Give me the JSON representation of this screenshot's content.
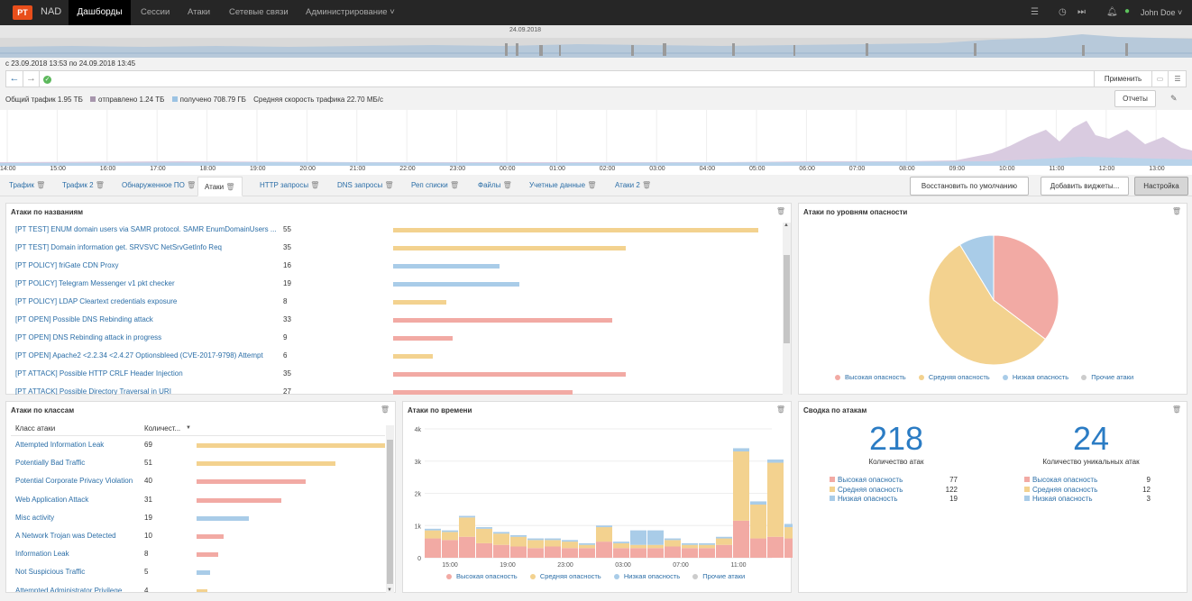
{
  "header": {
    "logo": "PT",
    "brand": "NAD",
    "nav": [
      "Дашборды",
      "Сессии",
      "Атаки",
      "Сетевые связи",
      "Администрирование ˅"
    ],
    "user": "John Doe ˅"
  },
  "overview": {
    "date_label": "24.09.2018"
  },
  "period": "с 23.09.2018 13:53 по 24.09.2018 13:45",
  "filter": {
    "apply_label": "Применить"
  },
  "traffic": {
    "total": "Общий трафик 1.95 ТБ",
    "sent": "отправлено 1.24 ТБ",
    "received": "получено 708.79 ГБ",
    "avg_speed": "Средняя скорость трафика 22.70 МБ/с",
    "reports_label": "Отчеты",
    "colors": {
      "sent": "#a796ad",
      "received": "#9cc3e3"
    }
  },
  "timeline_ticks": [
    "14:00",
    "15:00",
    "16:00",
    "17:00",
    "18:00",
    "19:00",
    "20:00",
    "21:00",
    "22:00",
    "23:00",
    "00:00",
    "01:00",
    "02:00",
    "03:00",
    "04:00",
    "05:00",
    "06:00",
    "07:00",
    "08:00",
    "09:00",
    "10:00",
    "11:00",
    "12:00",
    "13:00"
  ],
  "tabs": [
    "Трафик",
    "Трафик 2",
    "Обнаруженное ПО",
    "Атаки",
    "HTTP запросы",
    "DNS запросы",
    "Реп списки",
    "Файлы",
    "Учетные данные",
    "Атаки 2"
  ],
  "active_tab": "Атаки",
  "toolbar": {
    "restore_label": "Восстановить по умолчанию",
    "add_widgets_label": "Добавить виджеты...",
    "settings_label": "Настройка"
  },
  "colors": {
    "high": "#f2aaa4",
    "medium": "#f3d28f",
    "low": "#a9cce8",
    "other": "#cccccc",
    "link": "#2b6ea7"
  },
  "attacks_by_name": {
    "title": "Атаки по названиям",
    "max": 55,
    "rows": [
      {
        "name": "[PT TEST] ENUM domain users via SAMR protocol. SAMR EnumDomainUsers ...",
        "count": 55,
        "level": "medium"
      },
      {
        "name": "[PT TEST] Domain information get. SRVSVC NetSrvGetInfo Req",
        "count": 35,
        "level": "medium"
      },
      {
        "name": "[PT POLICY] friGate CDN Proxy",
        "count": 16,
        "level": "low"
      },
      {
        "name": "[PT POLICY] Telegram Messenger v1 pkt checker",
        "count": 19,
        "level": "low"
      },
      {
        "name": "[PT POLICY] LDAP Cleartext credentials exposure",
        "count": 8,
        "level": "medium"
      },
      {
        "name": "[PT OPEN] Possible DNS Rebinding attack",
        "count": 33,
        "level": "high"
      },
      {
        "name": "[PT OPEN] DNS Rebinding attack in progress",
        "count": 9,
        "level": "high"
      },
      {
        "name": "[PT OPEN] Apache2 <2.2.34 <2.4.27 Optionsbleed (CVE-2017-9798) Attempt",
        "count": 6,
        "level": "medium"
      },
      {
        "name": "[PT ATTACK] Possible HTTP CRLF Header Injection",
        "count": 35,
        "level": "high"
      },
      {
        "name": "[PT ATTACK] Possible Directory Traversal in URI",
        "count": 27,
        "level": "high"
      }
    ]
  },
  "attacks_by_severity": {
    "title": "Атаки по уровням опасности",
    "legend": [
      "Высокая опасность",
      "Средняя опасность",
      "Низкая опасность",
      "Прочие атаки"
    ],
    "chart_data": {
      "type": "pie",
      "labels": [
        "Высокая опасность",
        "Средняя опасность",
        "Низкая опасность"
      ],
      "values": [
        77,
        122,
        19
      ]
    }
  },
  "attacks_by_class": {
    "title": "Атаки по классам",
    "col_class": "Класс атаки",
    "col_count": "Количест...",
    "max": 69,
    "rows": [
      {
        "name": "Attempted Information Leak",
        "count": 69,
        "level": "medium"
      },
      {
        "name": "Potentially Bad Traffic",
        "count": 51,
        "level": "medium"
      },
      {
        "name": "Potential Corporate Privacy Violation",
        "count": 40,
        "level": "high"
      },
      {
        "name": "Web Application Attack",
        "count": 31,
        "level": "high"
      },
      {
        "name": "Misc activity",
        "count": 19,
        "level": "low"
      },
      {
        "name": "A Network Trojan was Detected",
        "count": 10,
        "level": "high"
      },
      {
        "name": "Information Leak",
        "count": 8,
        "level": "high"
      },
      {
        "name": "Not Suspicious Traffic",
        "count": 5,
        "level": "low"
      },
      {
        "name": "Attempted Administrator Privilege ...",
        "count": 4,
        "level": "medium"
      }
    ]
  },
  "attacks_by_time": {
    "title": "Атаки по времени",
    "legend": [
      "Высокая опасность",
      "Средняя опасность",
      "Низкая опасность",
      "Прочие атаки"
    ],
    "chart_data": {
      "type": "bar",
      "stacked": true,
      "y_ticks": [
        "0",
        "1k",
        "2k",
        "3k",
        "4k"
      ],
      "ylim": [
        0,
        4000
      ],
      "x_ticks": [
        "15:00",
        "19:00",
        "23:00",
        "03:00",
        "07:00",
        "11:00"
      ],
      "series": [
        {
          "name": "Высокая опасность",
          "values": [
            600,
            550,
            650,
            450,
            400,
            350,
            300,
            350,
            300,
            300,
            500,
            300,
            300,
            300,
            350,
            300,
            300,
            400,
            1150,
            600,
            650,
            600
          ]
        },
        {
          "name": "Средняя опасность",
          "values": [
            250,
            250,
            600,
            450,
            350,
            300,
            250,
            200,
            200,
            100,
            450,
            150,
            100,
            100,
            200,
            100,
            100,
            200,
            2150,
            1050,
            2300,
            350
          ]
        },
        {
          "name": "Низкая опасность",
          "values": [
            50,
            50,
            50,
            50,
            50,
            50,
            50,
            50,
            50,
            50,
            50,
            50,
            450,
            450,
            50,
            50,
            50,
            50,
            100,
            100,
            100,
            100
          ]
        }
      ]
    }
  },
  "attack_summary": {
    "title": "Сводка по атакам",
    "total": "218",
    "total_caption": "Количество атак",
    "unique": "24",
    "unique_caption": "Количество уникальных атак",
    "left": [
      {
        "label": "Высокая опасность",
        "value": "77",
        "level": "high"
      },
      {
        "label": "Средняя опасность",
        "value": "122",
        "level": "medium"
      },
      {
        "label": "Низкая опасность",
        "value": "19",
        "level": "low"
      }
    ],
    "right": [
      {
        "label": "Высокая опасность",
        "value": "9",
        "level": "high"
      },
      {
        "label": "Средняя опасность",
        "value": "12",
        "level": "medium"
      },
      {
        "label": "Низкая опасность",
        "value": "3",
        "level": "low"
      }
    ]
  }
}
